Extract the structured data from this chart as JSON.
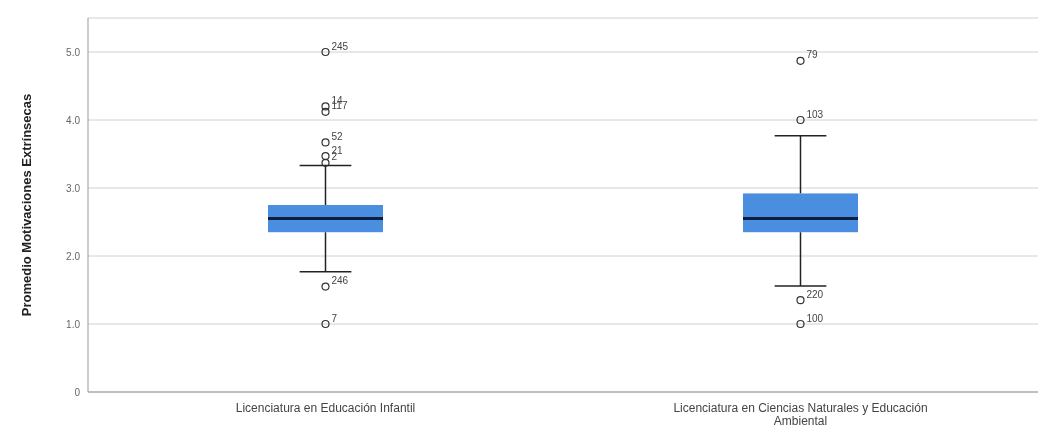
{
  "chart_data": {
    "type": "box",
    "ylabel": "Promedio Motivaciones Extrínsecas",
    "categories": [
      "Licenciatura en Educación Infantil",
      "Licenciatura en Ciencias Naturales y Educación Ambiental"
    ],
    "color": "#4a8ee0",
    "boxes": [
      {
        "low": 1.77,
        "q1": 2.35,
        "median": 2.55,
        "q3": 2.75,
        "high": 3.33,
        "outliers": [
          5.0,
          4.2,
          4.12,
          3.67,
          3.47,
          3.37,
          1.55,
          1.0
        ]
      },
      {
        "low": 1.56,
        "q1": 2.35,
        "median": 2.55,
        "q3": 2.92,
        "high": 3.77,
        "outliers": [
          4.87,
          4.0,
          1.35,
          1.0
        ]
      }
    ],
    "ylim": [
      0,
      5.5
    ],
    "yticks": [
      {
        "value": 0,
        "label": "0"
      },
      {
        "value": 1,
        "label": "1.0"
      },
      {
        "value": 2,
        "label": "2.0"
      },
      {
        "value": 3,
        "label": "3.0"
      },
      {
        "value": 4,
        "label": "4.0"
      },
      {
        "value": 5,
        "label": "5.0"
      }
    ],
    "grid": "y",
    "annotations": [
      "245",
      "14",
      "117",
      "52",
      "21",
      "2",
      "246",
      "7",
      "79",
      "103",
      "220",
      "100"
    ]
  }
}
